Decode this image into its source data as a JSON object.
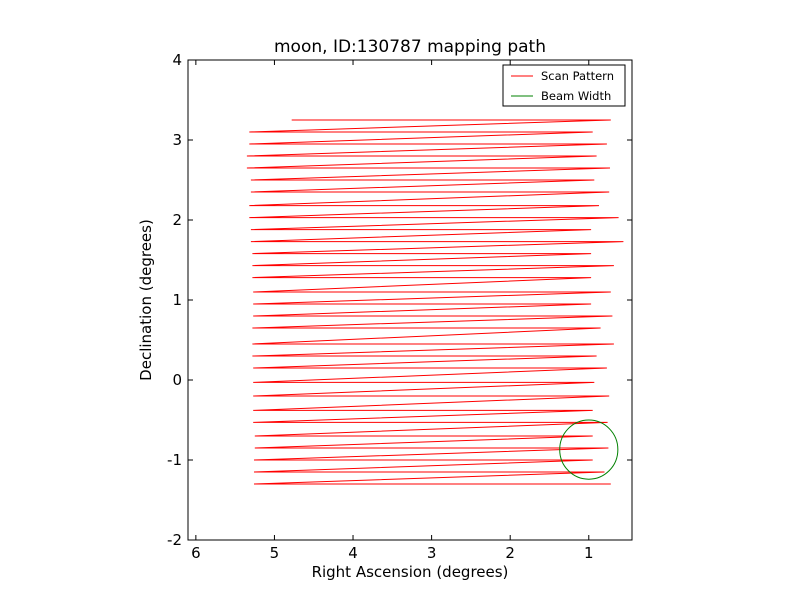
{
  "chart_data": {
    "type": "line",
    "title": "moon, ID:130787 mapping path",
    "xlabel": "Right Ascension (degrees)",
    "ylabel": "Declination (degrees)",
    "xlim": [
      6.1,
      0.45
    ],
    "ylim": [
      -2,
      4
    ],
    "x_inverted": true,
    "xticks": [
      6,
      5,
      4,
      3,
      2,
      1
    ],
    "yticks": [
      -2,
      -1,
      0,
      1,
      2,
      3,
      4
    ],
    "grid": false,
    "legend_position": "top-right",
    "series": [
      {
        "name": "Scan Pattern",
        "color": "#ff0000",
        "rows": [
          {
            "y": 3.25,
            "left": 4.78,
            "right": 0.72,
            "next_left": 5.32
          },
          {
            "y": 3.1,
            "left": 5.32,
            "right": 0.95,
            "next_left": 5.32
          },
          {
            "y": 2.95,
            "left": 5.32,
            "right": 0.77,
            "next_left": 5.35
          },
          {
            "y": 2.8,
            "left": 5.35,
            "right": 0.9,
            "next_left": 5.35
          },
          {
            "y": 2.65,
            "left": 5.35,
            "right": 0.73,
            "next_left": 5.3
          },
          {
            "y": 2.5,
            "left": 5.3,
            "right": 0.93,
            "next_left": 5.3
          },
          {
            "y": 2.35,
            "left": 5.3,
            "right": 0.74,
            "next_left": 5.32
          },
          {
            "y": 2.18,
            "left": 5.32,
            "right": 0.87,
            "next_left": 5.32
          },
          {
            "y": 2.03,
            "left": 5.32,
            "right": 0.62,
            "next_left": 5.3
          },
          {
            "y": 1.88,
            "left": 5.3,
            "right": 0.97,
            "next_left": 5.3
          },
          {
            "y": 1.73,
            "left": 5.3,
            "right": 0.56,
            "next_left": 5.28
          },
          {
            "y": 1.58,
            "left": 5.28,
            "right": 0.97,
            "next_left": 5.28
          },
          {
            "y": 1.43,
            "left": 5.28,
            "right": 0.68,
            "next_left": 5.28
          },
          {
            "y": 1.28,
            "left": 5.28,
            "right": 0.97,
            "next_left": 5.27
          },
          {
            "y": 1.1,
            "left": 5.27,
            "right": 0.72,
            "next_left": 5.27
          },
          {
            "y": 0.95,
            "left": 5.27,
            "right": 0.97,
            "next_left": 5.27
          },
          {
            "y": 0.8,
            "left": 5.27,
            "right": 0.7,
            "next_left": 5.28
          },
          {
            "y": 0.65,
            "left": 5.28,
            "right": 0.85,
            "next_left": 5.28
          },
          {
            "y": 0.45,
            "left": 5.28,
            "right": 0.68,
            "next_left": 5.28
          },
          {
            "y": 0.3,
            "left": 5.28,
            "right": 0.9,
            "next_left": 5.27
          },
          {
            "y": 0.15,
            "left": 5.27,
            "right": 0.77,
            "next_left": 5.27
          },
          {
            "y": -0.03,
            "left": 5.27,
            "right": 0.93,
            "next_left": 5.27
          },
          {
            "y": -0.2,
            "left": 5.27,
            "right": 0.74,
            "next_left": 5.27
          },
          {
            "y": -0.38,
            "left": 5.27,
            "right": 0.95,
            "next_left": 5.27
          },
          {
            "y": -0.53,
            "left": 5.27,
            "right": 0.76,
            "next_left": 5.25
          },
          {
            "y": -0.7,
            "left": 5.25,
            "right": 0.95,
            "next_left": 5.25
          },
          {
            "y": -0.85,
            "left": 5.25,
            "right": 0.75,
            "next_left": 5.26
          },
          {
            "y": -1.0,
            "left": 5.26,
            "right": 0.95,
            "next_left": 5.26
          },
          {
            "y": -1.15,
            "left": 5.26,
            "right": 0.8,
            "next_left": 5.26
          },
          {
            "y": -1.3,
            "left": 5.26,
            "right": 0.72,
            "next_left": null
          }
        ]
      },
      {
        "name": "Beam Width",
        "color": "#008000",
        "center": [
          1.0,
          -0.87
        ],
        "radius": 0.37
      }
    ]
  }
}
